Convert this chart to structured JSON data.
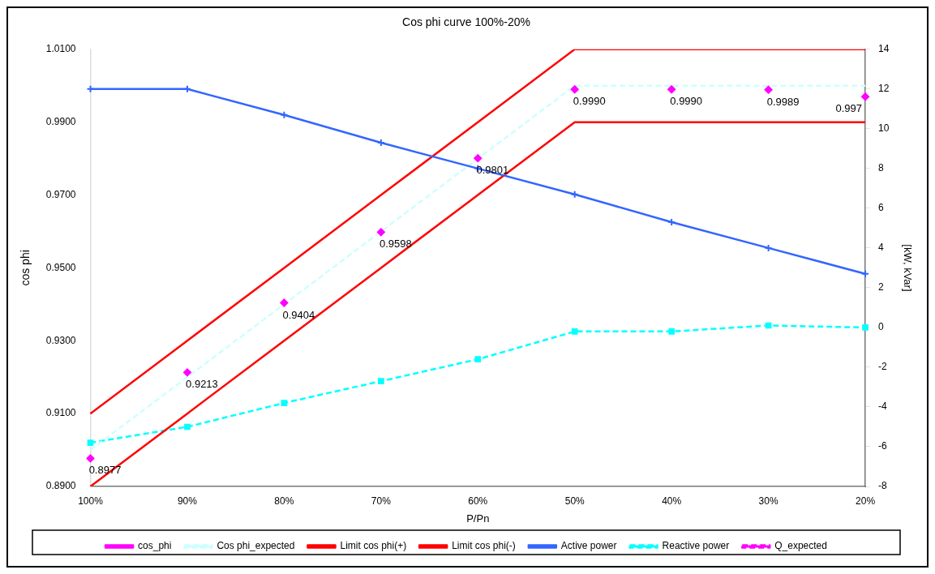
{
  "chart_data": {
    "type": "line",
    "title": "Cos phi curve 100%-20%",
    "xlabel": "P/Pn",
    "ylabel": "cos phi",
    "y2label": "[kW, kVar]",
    "categories": [
      "100%",
      "90%",
      "80%",
      "70%",
      "60%",
      "50%",
      "40%",
      "30%",
      "20%"
    ],
    "ylim": [
      0.89,
      1.01
    ],
    "yticks": [
      {
        "value": 0.89,
        "label": "0.8900"
      },
      {
        "value": 0.91,
        "label": "0.9100"
      },
      {
        "value": 0.93,
        "label": "0.9300"
      },
      {
        "value": 0.95,
        "label": "0.9500"
      },
      {
        "value": 0.97,
        "label": "0.9700"
      },
      {
        "value": 0.99,
        "label": "0.9900"
      },
      {
        "value": 1.01,
        "label": "1.0100"
      }
    ],
    "y2lim": [
      -8,
      14
    ],
    "y2ticks": [
      -8,
      -6,
      -4,
      -2,
      0,
      2,
      4,
      6,
      8,
      10,
      12,
      14
    ],
    "grid": false,
    "legend": "bottom",
    "series": [
      {
        "name": "cos_phi",
        "type": "scatter",
        "x": [
          "100%",
          "90%",
          "80%",
          "70%",
          "60%",
          "50%",
          "40%",
          "30%",
          "20%"
        ],
        "color": "#ff00ff",
        "marker": "diamond",
        "values": [
          0.8977,
          0.9213,
          0.9404,
          0.9598,
          0.9801,
          0.999,
          0.999,
          0.9989,
          0.997
        ],
        "value_labels": [
          "0.8977",
          "0.9213",
          "0.9404",
          "0.9598",
          "0.9801",
          "0.9990",
          "0.9990",
          "0.9989",
          "0.997"
        ]
      },
      {
        "name": "Cos phi_expected",
        "color": "#ccffff",
        "marker": "none",
        "line_style": "dashed",
        "values": [
          0.9,
          0.92,
          0.94,
          0.96,
          0.98,
          1.0,
          1.0,
          1.0,
          1.0
        ]
      },
      {
        "name": "Limit cos phi(+)",
        "color": "#ff0000",
        "marker": "none",
        "line_style": "solid",
        "values": [
          0.91,
          0.93,
          0.95,
          0.97,
          0.99,
          1.01,
          1.01,
          1.01,
          1.01
        ]
      },
      {
        "name": "Limit cos phi(-)",
        "color": "#ff0000",
        "marker": "none",
        "line_style": "solid",
        "values": [
          0.89,
          0.91,
          0.93,
          0.95,
          0.97,
          0.99,
          0.99,
          0.99,
          0.99
        ]
      },
      {
        "name": "Active power",
        "color": "#3366ff",
        "marker": "cross",
        "line_style": "solid",
        "axis": "y2",
        "values": [
          12,
          12,
          10.7,
          9.3,
          8,
          6.7,
          5.3,
          4,
          2.7
        ]
      },
      {
        "name": "Reactive power",
        "color": "#00ffff",
        "marker": "square",
        "line_style": "dashed",
        "axis": "y2",
        "values": [
          -5.8,
          -5,
          -3.8,
          -2.7,
          -1.6,
          -0.2,
          -0.2,
          0.1,
          0
        ]
      },
      {
        "name": "Q_expected",
        "color": "#ff00ff",
        "marker": "none",
        "line_style": "dashed",
        "axis": "y2",
        "values": [
          null,
          null,
          null,
          null,
          null,
          null,
          null,
          null,
          null
        ]
      }
    ]
  }
}
